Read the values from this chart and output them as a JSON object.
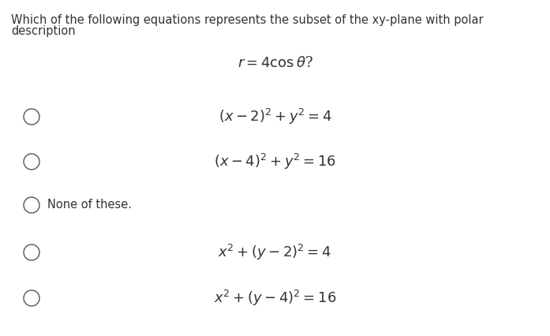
{
  "background_color": "#ffffff",
  "question_line1": "Which of the following equations represents the subset of the xy-plane with polar",
  "question_line2": "description",
  "polar_eq": "$r = 4\\cos\\theta$?",
  "options": [
    {
      "label": "$(x - 2)^2 + y^2 = 4$",
      "plain": false
    },
    {
      "label": "$(x - 4)^2 + y^2 = 16$",
      "plain": false
    },
    {
      "label": "None of these.",
      "plain": true
    },
    {
      "label": "$x^2 + (y - 2)^2 = 4$",
      "plain": false
    },
    {
      "label": "$x^2 + (y - 4)^2 = 16$",
      "plain": false
    }
  ],
  "question_fontsize": 10.5,
  "option_fontsize": 13,
  "none_fontsize": 10.5,
  "polar_fontsize": 13,
  "text_color": "#333333",
  "circle_color": "#555555",
  "fig_width": 6.97,
  "fig_height": 4.26,
  "dpi": 100
}
